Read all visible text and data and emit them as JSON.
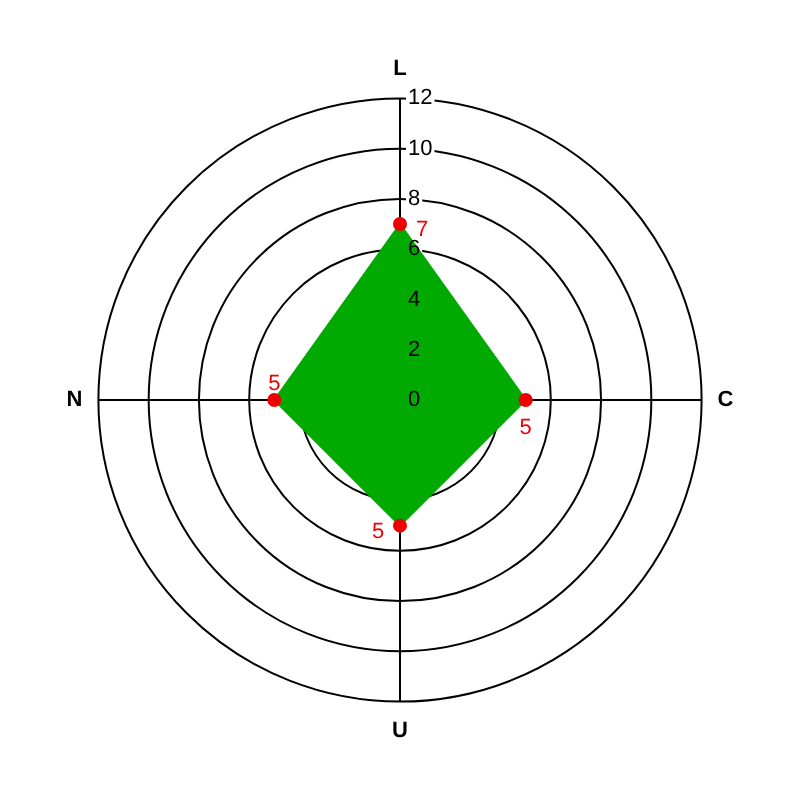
{
  "chart_data": {
    "type": "radar",
    "categories": [
      "L",
      "C",
      "U",
      "N"
    ],
    "series": [
      {
        "color": "#00aa00",
        "values": [
          7,
          5,
          5,
          5
        ]
      }
    ],
    "ylim": [
      0,
      12
    ],
    "yticks": [
      0,
      2,
      4,
      6,
      8,
      10,
      12
    ],
    "grid": true,
    "legend": false,
    "marker": "circle",
    "data_labels": true
  }
}
